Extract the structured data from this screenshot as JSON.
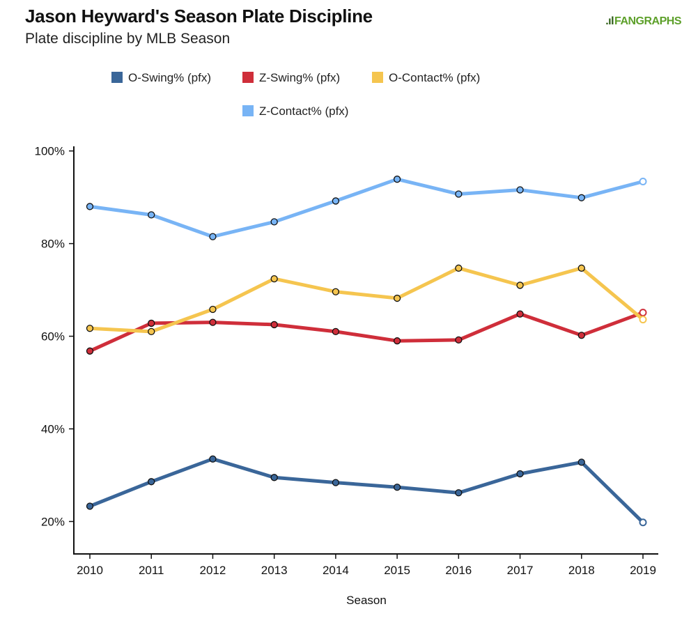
{
  "title": "Jason Heyward's Season Plate Discipline",
  "subtitle": "Plate discipline by MLB Season",
  "brand": {
    "mark": ".ıl",
    "name": "FANGRAPHS"
  },
  "chart_data": {
    "type": "line",
    "x": [
      "2010",
      "2011",
      "2012",
      "2013",
      "2014",
      "2015",
      "2016",
      "2017",
      "2018",
      "2019"
    ],
    "xlabel": "Season",
    "ylabel": "",
    "ylim": [
      0.13,
      1.01
    ],
    "y_ticks": [
      0.2,
      0.4,
      0.6,
      0.8,
      1.0
    ],
    "y_tick_labels": [
      "20%",
      "40%",
      "60%",
      "80%",
      "100%"
    ],
    "legend_position": "top",
    "last_point_hollow": true,
    "series": [
      {
        "name": "O-Swing% (pfx)",
        "color": "#3a6699",
        "values": [
          0.233,
          0.286,
          0.335,
          0.295,
          0.284,
          0.274,
          0.262,
          0.303,
          0.328,
          0.198
        ]
      },
      {
        "name": "Z-Swing% (pfx)",
        "color": "#cf2e3a",
        "values": [
          0.568,
          0.628,
          0.63,
          0.625,
          0.61,
          0.59,
          0.592,
          0.648,
          0.602,
          0.651
        ]
      },
      {
        "name": "O-Contact% (pfx)",
        "color": "#f5c54f",
        "values": [
          0.617,
          0.61,
          0.658,
          0.724,
          0.696,
          0.682,
          0.747,
          0.71,
          0.747,
          0.636
        ]
      },
      {
        "name": "Z-Contact% (pfx)",
        "color": "#78b4f5",
        "values": [
          0.88,
          0.862,
          0.815,
          0.847,
          0.892,
          0.939,
          0.907,
          0.916,
          0.899,
          0.934
        ]
      }
    ]
  }
}
